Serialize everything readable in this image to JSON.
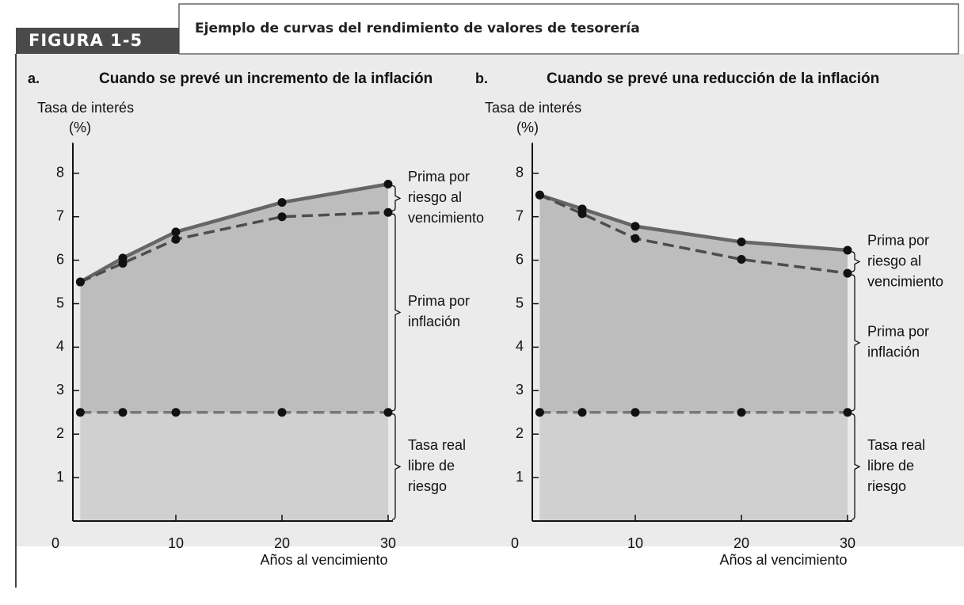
{
  "header": {
    "figure": "FIGURA 1-5",
    "title": "Ejemplo de curvas del rendimiento de valores de tesorería"
  },
  "chart_data": [
    {
      "type": "line",
      "panel": "a.",
      "title": "Cuando se prevé un incremento de la inflación",
      "ylabel": [
        "Tasa de interés",
        "(%)"
      ],
      "xlabel": "Años al vencimiento",
      "x": [
        1,
        5,
        10,
        20,
        30
      ],
      "xlim": [
        0,
        30
      ],
      "xticks": [
        0,
        10,
        20,
        30
      ],
      "ylim": [
        0,
        8.7
      ],
      "yticks": [
        1,
        2,
        3,
        4,
        5,
        6,
        7,
        8
      ],
      "series": [
        {
          "color": "#666666",
          "dashed": false,
          "values": [
            5.5,
            6.05,
            6.65,
            7.33,
            7.75
          ]
        },
        {
          "color": "#4d4d4d",
          "dashed": true,
          "values": [
            5.5,
            5.93,
            6.48,
            7.0,
            7.1
          ]
        },
        {
          "color": "#777777",
          "dashed": true,
          "values": [
            2.5,
            2.5,
            2.5,
            2.5,
            2.5
          ]
        }
      ],
      "annotations": [
        [
          "Prima por",
          "riesgo al",
          "vencimiento"
        ],
        [
          "Prima por",
          "inflación"
        ],
        [
          "Tasa real",
          "libre de",
          "riesgo"
        ]
      ]
    },
    {
      "type": "line",
      "panel": "b.",
      "title": "Cuando se prevé una reducción de la inflación",
      "ylabel": [
        "Tasa de interés",
        "(%)"
      ],
      "xlabel": "Años al vencimiento",
      "x": [
        1,
        5,
        10,
        20,
        30
      ],
      "xlim": [
        0,
        30
      ],
      "xticks": [
        0,
        10,
        20,
        30
      ],
      "ylim": [
        0,
        8.7
      ],
      "yticks": [
        1,
        2,
        3,
        4,
        5,
        6,
        7,
        8
      ],
      "series": [
        {
          "color": "#666666",
          "dashed": false,
          "values": [
            7.5,
            7.18,
            6.78,
            6.42,
            6.23
          ]
        },
        {
          "color": "#4d4d4d",
          "dashed": true,
          "values": [
            7.5,
            7.07,
            6.5,
            6.02,
            5.7
          ]
        },
        {
          "color": "#777777",
          "dashed": true,
          "values": [
            2.5,
            2.5,
            2.5,
            2.5,
            2.5
          ]
        }
      ],
      "annotations": [
        [
          "Prima por",
          "riesgo al",
          "vencimiento"
        ],
        [
          "Prima por",
          "inflación"
        ],
        [
          "Tasa real",
          "libre de",
          "riesgo"
        ]
      ]
    }
  ]
}
